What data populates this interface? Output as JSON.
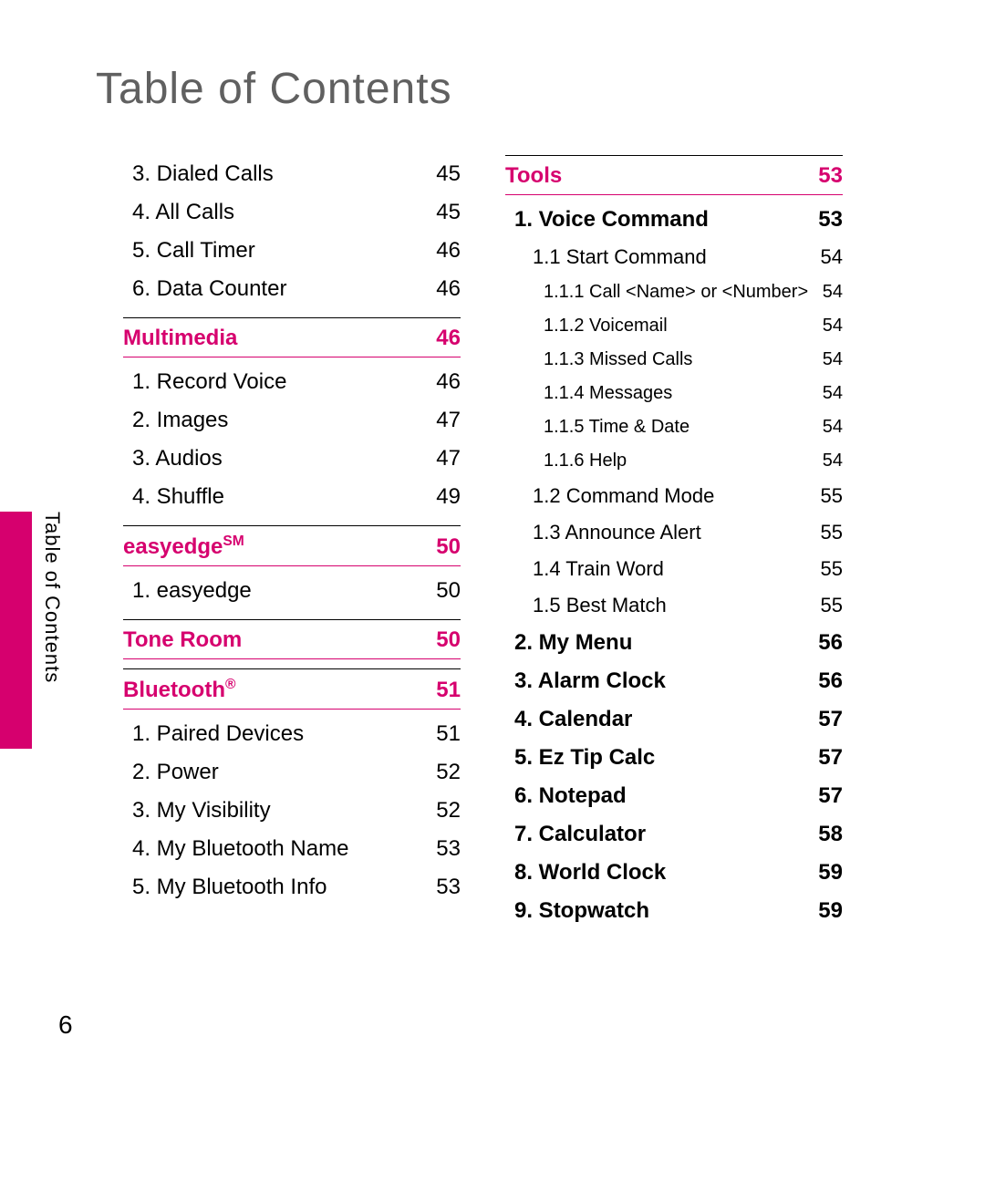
{
  "title": "Table of Contents",
  "side_label": "Table of Contents",
  "page_number": "6",
  "colors": {
    "accent": "#d6006e",
    "title": "#606060",
    "text": "#000000",
    "background": "#ffffff"
  },
  "typography": {
    "title_fontsize": 48,
    "section_fontsize": 24,
    "lvl1_fontsize": 24,
    "lvl2_fontsize": 22,
    "lvl3_fontsize": 20,
    "side_label_fontsize": 22,
    "page_number_fontsize": 28
  },
  "left_column": [
    {
      "type": "lvl1",
      "label": "3. Dialed Calls",
      "page": "45"
    },
    {
      "type": "lvl1",
      "label": "4. All Calls",
      "page": "45"
    },
    {
      "type": "lvl1",
      "label": "5. Call Timer",
      "page": "46"
    },
    {
      "type": "lvl1",
      "label": "6. Data Counter",
      "page": "46"
    },
    {
      "type": "section",
      "label": "Multimedia",
      "page": "46"
    },
    {
      "type": "lvl1",
      "label": "1. Record Voice",
      "page": "46"
    },
    {
      "type": "lvl1",
      "label": "2. Images",
      "page": "47"
    },
    {
      "type": "lvl1",
      "label": "3. Audios",
      "page": "47"
    },
    {
      "type": "lvl1",
      "label": "4. Shuffle",
      "page": "49"
    },
    {
      "type": "section",
      "label": "easyedge",
      "sup": "SM",
      "page": "50"
    },
    {
      "type": "lvl1",
      "label": "1. easyedge",
      "page": "50"
    },
    {
      "type": "section",
      "label": "Tone Room",
      "page": "50"
    },
    {
      "type": "section",
      "label": "Bluetooth",
      "sup": "®",
      "page": "51"
    },
    {
      "type": "lvl1",
      "label": "1. Paired Devices",
      "page": "51"
    },
    {
      "type": "lvl1",
      "label": "2. Power",
      "page": "52"
    },
    {
      "type": "lvl1",
      "label": "3. My Visibility",
      "page": "52"
    },
    {
      "type": "lvl1",
      "label": "4. My Bluetooth Name",
      "page": "53"
    },
    {
      "type": "lvl1",
      "label": "5. My Bluetooth Info",
      "page": "53"
    }
  ],
  "right_column": [
    {
      "type": "section",
      "first": true,
      "label": "Tools",
      "page": "53"
    },
    {
      "type": "lvl1",
      "bold": true,
      "label": "1. Voice Command",
      "page": "53"
    },
    {
      "type": "lvl2",
      "label": "1.1 Start Command",
      "page": "54"
    },
    {
      "type": "lvl3",
      "label": "1.1.1  Call <Name> or <Number>",
      "page": "54"
    },
    {
      "type": "lvl3",
      "label": "1.1.2 Voicemail",
      "page": "54"
    },
    {
      "type": "lvl3",
      "label": "1.1.3 Missed Calls",
      "page": "54"
    },
    {
      "type": "lvl3",
      "label": "1.1.4 Messages",
      "page": "54"
    },
    {
      "type": "lvl3",
      "label": "1.1.5 Time & Date",
      "page": "54"
    },
    {
      "type": "lvl3",
      "label": "1.1.6 Help",
      "page": "54"
    },
    {
      "type": "lvl2",
      "label": "1.2 Command Mode",
      "page": "55"
    },
    {
      "type": "lvl2",
      "label": "1.3 Announce Alert",
      "page": "55"
    },
    {
      "type": "lvl2",
      "label": "1.4 Train Word",
      "page": "55"
    },
    {
      "type": "lvl2",
      "label": "1.5 Best Match",
      "page": "55"
    },
    {
      "type": "lvl1",
      "bold": true,
      "label": "2. My Menu",
      "page": "56"
    },
    {
      "type": "lvl1",
      "bold": true,
      "label": "3. Alarm Clock",
      "page": "56"
    },
    {
      "type": "lvl1",
      "bold": true,
      "label": "4. Calendar",
      "page": "57"
    },
    {
      "type": "lvl1",
      "bold": true,
      "label": "5. Ez Tip Calc",
      "page": "57"
    },
    {
      "type": "lvl1",
      "bold": true,
      "label": "6. Notepad",
      "page": "57"
    },
    {
      "type": "lvl1",
      "bold": true,
      "label": "7. Calculator",
      "page": "58"
    },
    {
      "type": "lvl1",
      "bold": true,
      "label": "8. World Clock",
      "page": "59"
    },
    {
      "type": "lvl1",
      "bold": true,
      "label": "9. Stopwatch",
      "page": "59"
    }
  ]
}
